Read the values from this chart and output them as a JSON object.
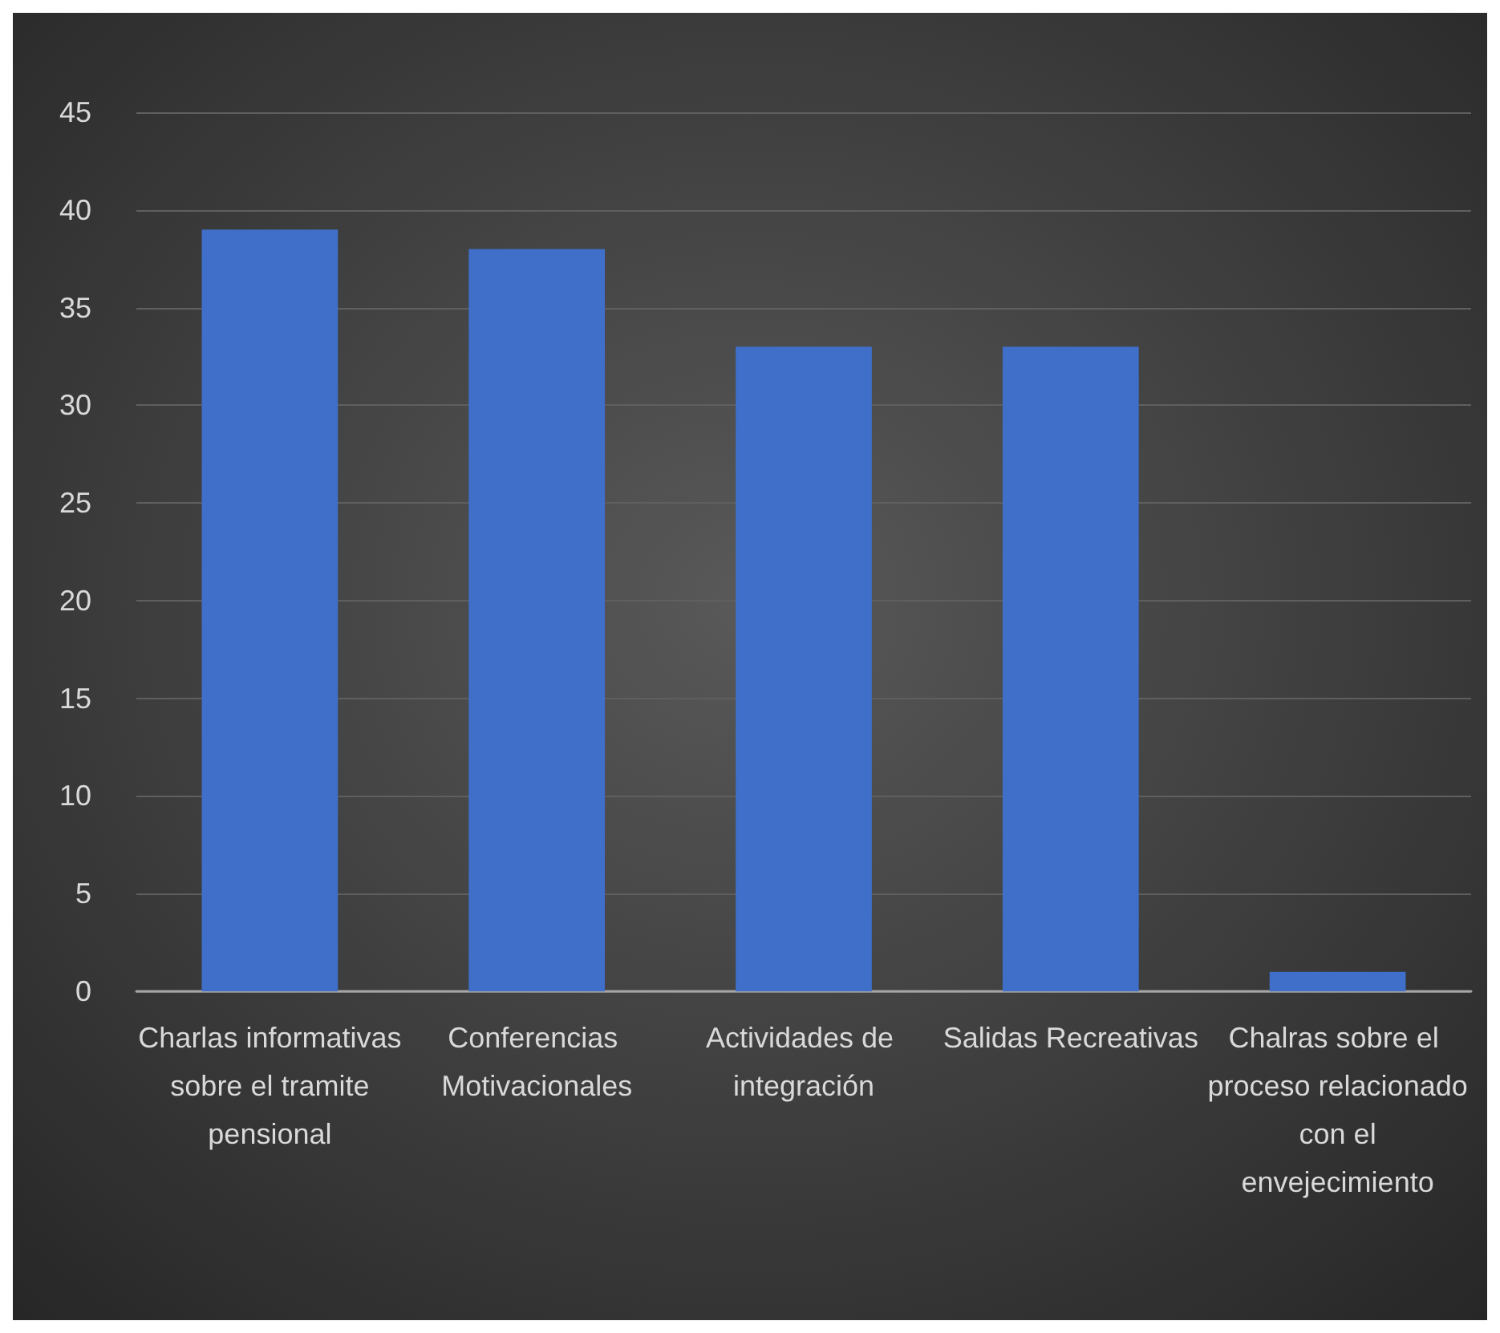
{
  "chart_data": {
    "type": "bar",
    "categories": [
      "Charlas informativas sobre el tramite pensional",
      "Conferencias Motivacionales",
      "Actividades de integración",
      "Salidas Recreativas",
      "Chalras sobre el proceso relacionado con el envejecimiento"
    ],
    "values": [
      39,
      38,
      33,
      33,
      1
    ],
    "color": "#3f6fc8",
    "ylim": [
      0,
      45
    ],
    "yticks": [
      0,
      5,
      10,
      15,
      20,
      25,
      30,
      35,
      40,
      45
    ],
    "grid": "y"
  }
}
